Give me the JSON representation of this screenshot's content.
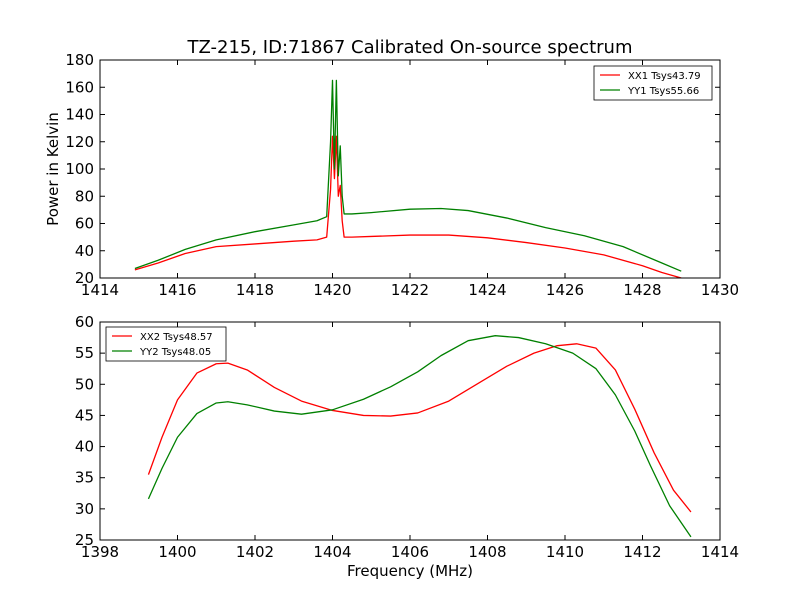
{
  "figure": {
    "title": "TZ-215, ID:71867 Calibrated On-source spectrum",
    "xlabel": "Frequency (MHz)"
  },
  "chart_data": [
    {
      "type": "line",
      "title": "TZ-215, ID:71867 Calibrated On-source spectrum",
      "xlabel": "",
      "ylabel": "Power in Kelvin",
      "xlim": [
        1414,
        1430
      ],
      "ylim": [
        20,
        180
      ],
      "xticks": [
        1414,
        1416,
        1418,
        1420,
        1422,
        1424,
        1426,
        1428,
        1430
      ],
      "yticks": [
        20,
        40,
        60,
        80,
        100,
        120,
        140,
        160,
        180
      ],
      "grid": false,
      "legend_position": "top-right",
      "series": [
        {
          "name": "XX1 Tsys43.79",
          "color": "#ff0000",
          "x": [
            1414.9,
            1415.5,
            1416.2,
            1417.0,
            1418.0,
            1419.0,
            1419.6,
            1419.85,
            1419.95,
            1420.0,
            1420.05,
            1420.1,
            1420.15,
            1420.2,
            1420.25,
            1420.3,
            1420.5,
            1421.0,
            1422.0,
            1423.0,
            1424.0,
            1425.0,
            1426.0,
            1427.0,
            1428.0,
            1428.5,
            1429.0
          ],
          "y": [
            26,
            31,
            38,
            43,
            45,
            47,
            48,
            50,
            85,
            124,
            93,
            124,
            80,
            88,
            62,
            50,
            50,
            50.5,
            51.5,
            51.5,
            49.5,
            46,
            42,
            37,
            29,
            24,
            20
          ]
        },
        {
          "name": "YY1 Tsys55.66",
          "color": "#008000",
          "x": [
            1414.9,
            1415.5,
            1416.2,
            1417.0,
            1418.0,
            1419.0,
            1419.6,
            1419.85,
            1419.95,
            1420.0,
            1420.05,
            1420.1,
            1420.15,
            1420.2,
            1420.25,
            1420.3,
            1420.5,
            1421.0,
            1422.0,
            1422.8,
            1423.5,
            1424.5,
            1425.5,
            1426.5,
            1427.5,
            1428.5,
            1429.0
          ],
          "y": [
            27,
            33,
            41,
            48,
            54,
            59,
            62,
            65,
            120,
            165,
            100,
            165,
            95,
            117,
            80,
            67,
            67,
            68,
            70.5,
            71,
            69.5,
            64,
            57,
            51,
            43,
            31,
            25
          ]
        }
      ]
    },
    {
      "type": "line",
      "title": "",
      "xlabel": "Frequency (MHz)",
      "ylabel": "",
      "xlim": [
        1398,
        1414
      ],
      "ylim": [
        25,
        60
      ],
      "xticks": [
        1398,
        1400,
        1402,
        1404,
        1406,
        1408,
        1410,
        1412,
        1414
      ],
      "yticks": [
        25,
        30,
        35,
        40,
        45,
        50,
        55,
        60
      ],
      "grid": false,
      "legend_position": "top-left",
      "series": [
        {
          "name": "XX2 Tsys48.57",
          "color": "#ff0000",
          "x": [
            1399.25,
            1399.6,
            1400.0,
            1400.5,
            1401.0,
            1401.3,
            1401.8,
            1402.5,
            1403.2,
            1404.0,
            1404.8,
            1405.5,
            1406.2,
            1407.0,
            1407.8,
            1408.5,
            1409.2,
            1409.8,
            1410.3,
            1410.8,
            1411.3,
            1411.8,
            1412.3,
            1412.8,
            1413.25
          ],
          "y": [
            35.5,
            41.5,
            47.5,
            51.8,
            53.3,
            53.4,
            52.3,
            49.5,
            47.3,
            45.8,
            45.0,
            44.9,
            45.4,
            47.3,
            50.3,
            52.9,
            55.0,
            56.2,
            56.5,
            55.8,
            52.3,
            46.0,
            39.0,
            33.0,
            29.5
          ]
        },
        {
          "name": "YY2 Tsys48.05",
          "color": "#008000",
          "x": [
            1399.25,
            1399.6,
            1400.0,
            1400.5,
            1401.0,
            1401.3,
            1401.8,
            1402.5,
            1403.2,
            1404.0,
            1404.8,
            1405.5,
            1406.2,
            1406.8,
            1407.5,
            1408.2,
            1408.8,
            1409.5,
            1410.2,
            1410.8,
            1411.3,
            1411.8,
            1412.2,
            1412.7,
            1413.25
          ],
          "y": [
            31.6,
            36.5,
            41.5,
            45.3,
            47.0,
            47.2,
            46.7,
            45.7,
            45.2,
            45.9,
            47.6,
            49.6,
            52.0,
            54.6,
            57.0,
            57.8,
            57.5,
            56.5,
            55.0,
            52.5,
            48.3,
            42.5,
            37.0,
            30.5,
            25.5
          ]
        }
      ]
    }
  ]
}
